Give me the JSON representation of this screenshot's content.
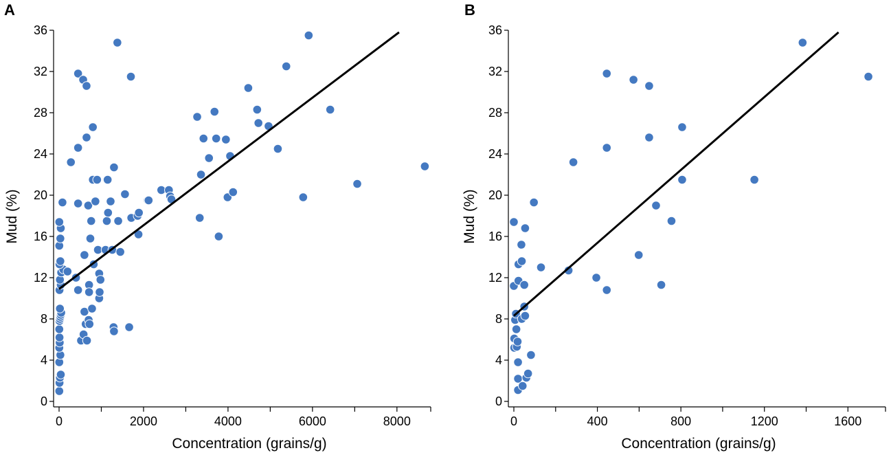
{
  "colors": {
    "point": "#4479c1",
    "point_stroke": "#ffffff",
    "line": "#000000",
    "axis": "#000000"
  },
  "chart_data": [
    {
      "type": "scatter",
      "panel_label": "A",
      "xlabel": "Concentration (grains/g)",
      "ylabel": "Mud (%)",
      "xlim": [
        0,
        8800
      ],
      "ylim": [
        0,
        36
      ],
      "xticks": [
        0,
        2000,
        4000,
        6000,
        8000
      ],
      "xticks_minor": [
        1000,
        3000,
        5000,
        7000,
        8800
      ],
      "yticks": [
        0,
        4,
        8,
        12,
        16,
        20,
        24,
        28,
        32,
        36
      ],
      "grid": false,
      "trendline": {
        "x": [
          0,
          8050
        ],
        "y": [
          10.9,
          35.8
        ]
      },
      "points": [
        [
          5,
          1.0
        ],
        [
          10,
          1.8
        ],
        [
          20,
          2.3
        ],
        [
          40,
          2.6
        ],
        [
          5,
          3.8
        ],
        [
          30,
          4.5
        ],
        [
          5,
          5.2
        ],
        [
          15,
          5.7
        ],
        [
          10,
          6.2
        ],
        [
          5,
          7.0
        ],
        [
          10,
          7.8
        ],
        [
          20,
          8.0
        ],
        [
          30,
          8.2
        ],
        [
          40,
          8.4
        ],
        [
          50,
          8.6
        ],
        [
          20,
          9.0
        ],
        [
          10,
          10.8
        ],
        [
          40,
          11.3
        ],
        [
          20,
          11.8
        ],
        [
          50,
          12.5
        ],
        [
          100,
          12.8
        ],
        [
          200,
          12.6
        ],
        [
          10,
          13.3
        ],
        [
          30,
          13.6
        ],
        [
          5,
          15.1
        ],
        [
          30,
          15.8
        ],
        [
          40,
          16.8
        ],
        [
          5,
          17.4
        ],
        [
          80,
          19.3
        ],
        [
          280,
          23.2
        ],
        [
          400,
          12.0
        ],
        [
          450,
          10.8
        ],
        [
          450,
          19.2
        ],
        [
          450,
          24.6
        ],
        [
          450,
          31.8
        ],
        [
          520,
          5.9
        ],
        [
          570,
          31.2
        ],
        [
          580,
          6.5
        ],
        [
          600,
          8.7
        ],
        [
          600,
          14.2
        ],
        [
          630,
          7.5
        ],
        [
          650,
          25.6
        ],
        [
          650,
          30.6
        ],
        [
          660,
          5.9
        ],
        [
          690,
          19.0
        ],
        [
          700,
          7.9
        ],
        [
          710,
          11.3
        ],
        [
          710,
          10.6
        ],
        [
          720,
          7.5
        ],
        [
          740,
          15.8
        ],
        [
          760,
          17.5
        ],
        [
          780,
          9.0
        ],
        [
          800,
          26.6
        ],
        [
          800,
          21.5
        ],
        [
          820,
          13.3
        ],
        [
          860,
          19.4
        ],
        [
          900,
          21.5
        ],
        [
          920,
          14.7
        ],
        [
          950,
          12.4
        ],
        [
          950,
          10.0
        ],
        [
          960,
          10.6
        ],
        [
          980,
          11.8
        ],
        [
          1100,
          14.7
        ],
        [
          1130,
          17.5
        ],
        [
          1150,
          21.5
        ],
        [
          1160,
          18.3
        ],
        [
          1220,
          19.4
        ],
        [
          1260,
          14.7
        ],
        [
          1290,
          7.2
        ],
        [
          1300,
          6.8
        ],
        [
          1300,
          22.7
        ],
        [
          1380,
          34.8
        ],
        [
          1400,
          17.5
        ],
        [
          1450,
          14.5
        ],
        [
          1560,
          20.1
        ],
        [
          1660,
          7.2
        ],
        [
          1700,
          31.5
        ],
        [
          1710,
          17.8
        ],
        [
          1860,
          18.0
        ],
        [
          1880,
          16.2
        ],
        [
          1890,
          18.3
        ],
        [
          2100,
          19.5
        ],
        [
          2120,
          19.5
        ],
        [
          2420,
          20.5
        ],
        [
          2600,
          20.5
        ],
        [
          2630,
          19.9
        ],
        [
          2660,
          19.6
        ],
        [
          3270,
          27.6
        ],
        [
          3330,
          17.8
        ],
        [
          3360,
          22.0
        ],
        [
          3420,
          25.5
        ],
        [
          3550,
          23.6
        ],
        [
          3680,
          28.1
        ],
        [
          3720,
          25.5
        ],
        [
          3780,
          16.0
        ],
        [
          3950,
          25.4
        ],
        [
          3990,
          19.8
        ],
        [
          4050,
          23.8
        ],
        [
          4120,
          20.3
        ],
        [
          4480,
          30.4
        ],
        [
          4690,
          28.3
        ],
        [
          4720,
          27.0
        ],
        [
          4960,
          26.7
        ],
        [
          5180,
          24.5
        ],
        [
          5380,
          32.5
        ],
        [
          5780,
          19.8
        ],
        [
          5910,
          35.5
        ],
        [
          6420,
          28.3
        ],
        [
          7060,
          21.1
        ],
        [
          8660,
          22.8
        ]
      ]
    },
    {
      "type": "scatter",
      "panel_label": "B",
      "xlabel": "Concentration (grains/g)",
      "ylabel": "Mud (%)",
      "xlim": [
        0,
        1780
      ],
      "ylim": [
        0,
        36
      ],
      "xticks": [
        0,
        400,
        800,
        1200,
        1600
      ],
      "xticks_minor": [
        200,
        600,
        1000,
        1400,
        1780
      ],
      "yticks": [
        0,
        4,
        8,
        12,
        16,
        20,
        24,
        28,
        32,
        36
      ],
      "grid": false,
      "trendline": {
        "x": [
          0,
          1555
        ],
        "y": [
          8.3,
          35.8
        ]
      },
      "points": [
        [
          0,
          17.4
        ],
        [
          0,
          11.2
        ],
        [
          2,
          6.1
        ],
        [
          2,
          5.2
        ],
        [
          6,
          7.9
        ],
        [
          10,
          8.5
        ],
        [
          12,
          7.0
        ],
        [
          14,
          5.3
        ],
        [
          18,
          5.8
        ],
        [
          20,
          3.8
        ],
        [
          20,
          2.2
        ],
        [
          20,
          1.1
        ],
        [
          22,
          11.7
        ],
        [
          22,
          13.3
        ],
        [
          36,
          15.2
        ],
        [
          38,
          13.6
        ],
        [
          38,
          8.0
        ],
        [
          42,
          1.5
        ],
        [
          50,
          11.3
        ],
        [
          50,
          9.2
        ],
        [
          54,
          8.3
        ],
        [
          54,
          16.8
        ],
        [
          60,
          2.3
        ],
        [
          68,
          2.7
        ],
        [
          82,
          4.5
        ],
        [
          96,
          19.3
        ],
        [
          130,
          13.0
        ],
        [
          262,
          12.7
        ],
        [
          285,
          23.2
        ],
        [
          395,
          12.0
        ],
        [
          445,
          10.8
        ],
        [
          445,
          24.6
        ],
        [
          445,
          31.8
        ],
        [
          573,
          31.2
        ],
        [
          598,
          14.2
        ],
        [
          648,
          25.6
        ],
        [
          648,
          30.6
        ],
        [
          681,
          19.0
        ],
        [
          706,
          11.3
        ],
        [
          755,
          17.5
        ],
        [
          806,
          26.6
        ],
        [
          806,
          21.5
        ],
        [
          1152,
          21.5
        ],
        [
          1383,
          34.8
        ],
        [
          1698,
          31.5
        ]
      ]
    }
  ]
}
